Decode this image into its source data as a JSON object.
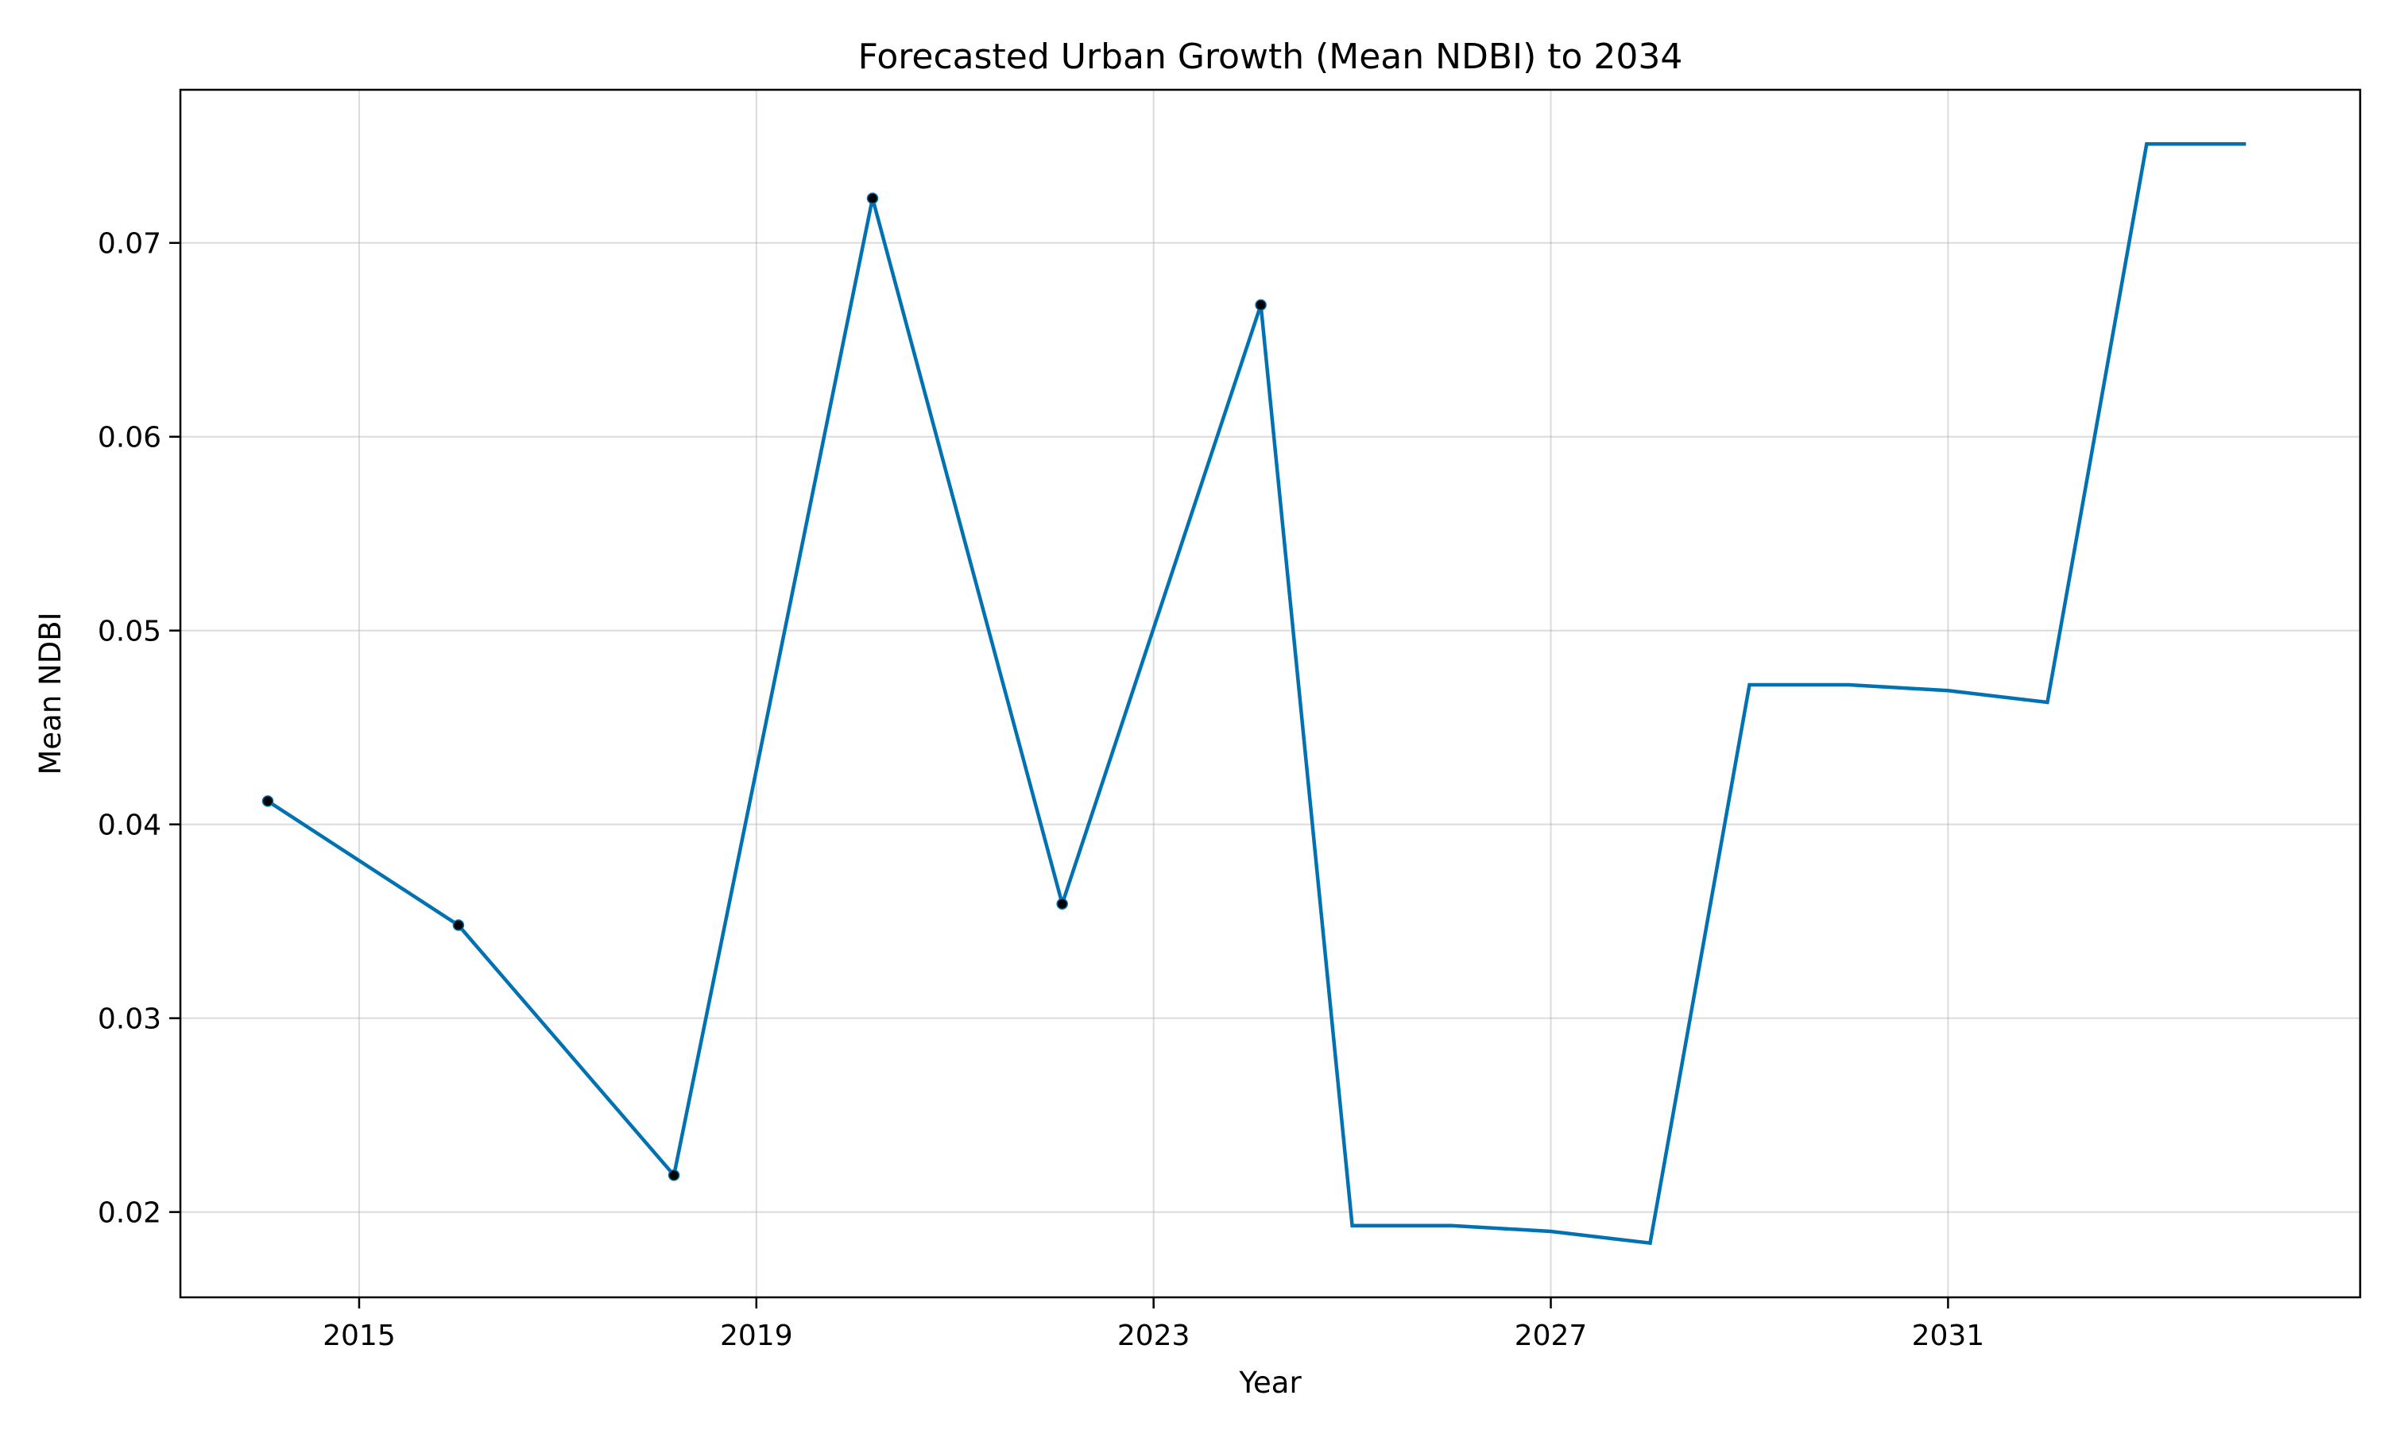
{
  "chart_data": {
    "type": "line",
    "title": "Forecasted Urban Growth (Mean NDBI) to 2034",
    "xlabel": "Year",
    "ylabel": "Mean NDBI",
    "xlim": [
      2013.2,
      2035.15
    ],
    "ylim": [
      0.0156,
      0.0779
    ],
    "x_ticks": [
      2015,
      2019,
      2023,
      2027,
      2031
    ],
    "y_ticks": [
      0.02,
      0.03,
      0.04,
      0.05,
      0.06,
      0.07
    ],
    "y_tick_labels": [
      "0.02",
      "0.03",
      "0.04",
      "0.05",
      "0.06",
      "0.07"
    ],
    "grid": true,
    "series": [
      {
        "color": "#0072b2",
        "x": [
          2014.08,
          2016.0,
          2018.17,
          2020.17,
          2022.08,
          2024.08,
          2025.0,
          2026.0,
          2027.0,
          2028.0,
          2029.0,
          2030.0,
          2031.0,
          2032.0,
          2033.0,
          2034.0
        ],
        "y": [
          0.0412,
          0.0348,
          0.0219,
          0.0723,
          0.0359,
          0.0668,
          0.0193,
          0.0193,
          0.019,
          0.0184,
          0.0472,
          0.0472,
          0.0469,
          0.0463,
          0.0751,
          0.0751
        ]
      }
    ],
    "observed_points": {
      "color": "#000000",
      "x": [
        2014.08,
        2016.0,
        2018.17,
        2020.17,
        2022.08,
        2024.08
      ],
      "y": [
        0.0412,
        0.0348,
        0.0219,
        0.0723,
        0.0359,
        0.0668
      ]
    }
  }
}
